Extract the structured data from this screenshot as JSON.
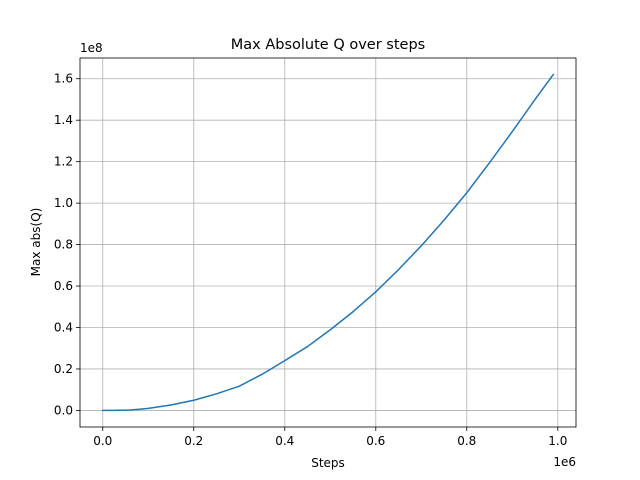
{
  "chart_data": {
    "type": "line",
    "title": "Max Absolute Q over steps",
    "xlabel": "Steps",
    "ylabel": "Max abs(Q)",
    "x_offset_text": "1e6",
    "y_offset_text": "1e8",
    "x_scale": 1000000,
    "y_scale": 100000000,
    "xlim": [
      -50000,
      1040000
    ],
    "ylim": [
      -8000000,
      170000000
    ],
    "x_ticks": [
      0,
      200000,
      400000,
      600000,
      800000,
      1000000
    ],
    "x_tick_labels": [
      "0.0",
      "0.2",
      "0.4",
      "0.6",
      "0.8",
      "1.0"
    ],
    "y_ticks": [
      0,
      20000000,
      40000000,
      60000000,
      80000000,
      100000000,
      120000000,
      140000000,
      160000000
    ],
    "y_tick_labels": [
      "0.0",
      "0.2",
      "0.4",
      "0.6",
      "0.8",
      "1.0",
      "1.2",
      "1.4",
      "1.6"
    ],
    "grid": true,
    "line_color": "#1f77b4",
    "series": [
      {
        "x": [
          0,
          20000,
          40000,
          60000,
          80000,
          100000,
          150000,
          200000,
          250000,
          300000,
          350000,
          400000,
          450000,
          500000,
          550000,
          600000,
          650000,
          700000,
          750000,
          800000,
          850000,
          900000,
          950000,
          990000
        ],
        "y": [
          0,
          0,
          50000,
          200000,
          550000,
          1000000,
          2600000,
          4900000,
          8000000,
          11700000,
          17400000,
          24000000,
          30800000,
          38900000,
          47600000,
          57200000,
          67900000,
          79400000,
          91800000,
          105000000,
          119500000,
          134500000,
          150000000,
          162000000
        ]
      }
    ]
  }
}
